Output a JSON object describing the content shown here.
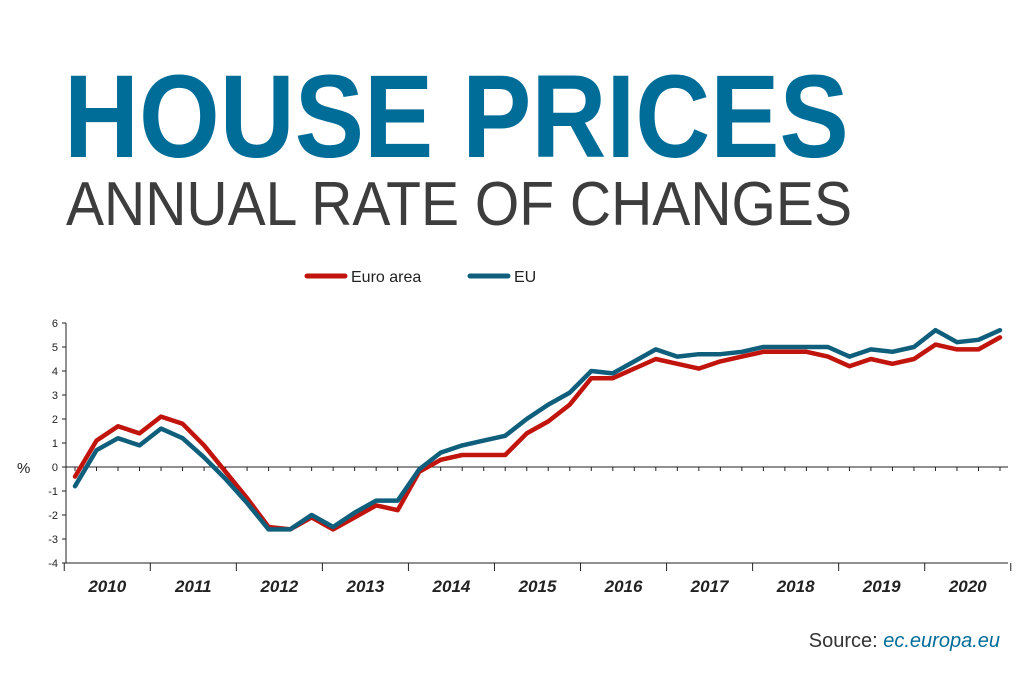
{
  "header": {
    "title": "HOUSE PRICES",
    "subtitle": "ANNUAL RATE OF CHANGES"
  },
  "source": {
    "label": "Source:",
    "link": "ec.europa.eu"
  },
  "colors": {
    "title": "#006d99",
    "subtitle": "#3d3d3d",
    "euro_area": "#c0140c",
    "eu": "#0f5f7c",
    "axis": "#222222"
  },
  "chart_data": {
    "type": "line",
    "title": "HOUSE PRICES",
    "subtitle": "ANNUAL RATE OF CHANGES",
    "xlabel": "",
    "ylabel": "%",
    "ylim": [
      -4,
      6
    ],
    "yticks": [
      -4,
      -3,
      -2,
      -1,
      0,
      1,
      2,
      3,
      4,
      5,
      6
    ],
    "grid": false,
    "legend": "top-center",
    "x_unit": "quarter",
    "categories": [
      "2010",
      "2011",
      "2012",
      "2013",
      "2014",
      "2015",
      "2016",
      "2017",
      "2018",
      "2019",
      "2020"
    ],
    "x": [
      "2010Q1",
      "2010Q2",
      "2010Q3",
      "2010Q4",
      "2011Q1",
      "2011Q2",
      "2011Q3",
      "2011Q4",
      "2012Q1",
      "2012Q2",
      "2012Q3",
      "2012Q4",
      "2013Q1",
      "2013Q2",
      "2013Q3",
      "2013Q4",
      "2014Q1",
      "2014Q2",
      "2014Q3",
      "2014Q4",
      "2015Q1",
      "2015Q2",
      "2015Q3",
      "2015Q4",
      "2016Q1",
      "2016Q2",
      "2016Q3",
      "2016Q4",
      "2017Q1",
      "2017Q2",
      "2017Q3",
      "2017Q4",
      "2018Q1",
      "2018Q2",
      "2018Q3",
      "2018Q4",
      "2019Q1",
      "2019Q2",
      "2019Q3",
      "2019Q4",
      "2020Q1",
      "2020Q2",
      "2020Q3",
      "2020Q4"
    ],
    "series": [
      {
        "name": "Euro area",
        "color": "#c0140c",
        "values": [
          -0.4,
          1.1,
          1.7,
          1.4,
          2.1,
          1.8,
          0.9,
          -0.2,
          -1.3,
          -2.5,
          -2.6,
          -2.1,
          -2.6,
          -2.1,
          -1.6,
          -1.8,
          -0.2,
          0.3,
          0.5,
          0.5,
          0.5,
          1.4,
          1.9,
          2.6,
          3.7,
          3.7,
          4.1,
          4.5,
          4.3,
          4.1,
          4.4,
          4.6,
          4.8,
          4.8,
          4.8,
          4.6,
          4.2,
          4.5,
          4.3,
          4.5,
          5.1,
          4.9,
          4.9,
          5.4
        ]
      },
      {
        "name": "EU",
        "color": "#0f5f7c",
        "values": [
          -0.8,
          0.7,
          1.2,
          0.9,
          1.6,
          1.2,
          0.4,
          -0.5,
          -1.5,
          -2.6,
          -2.6,
          -2.0,
          -2.5,
          -1.9,
          -1.4,
          -1.4,
          -0.1,
          0.6,
          0.9,
          1.1,
          1.3,
          2.0,
          2.6,
          3.1,
          4.0,
          3.9,
          4.4,
          4.9,
          4.6,
          4.7,
          4.7,
          4.8,
          5.0,
          5.0,
          5.0,
          5.0,
          4.6,
          4.9,
          4.8,
          5.0,
          5.7,
          5.2,
          5.3,
          5.7
        ]
      }
    ]
  }
}
